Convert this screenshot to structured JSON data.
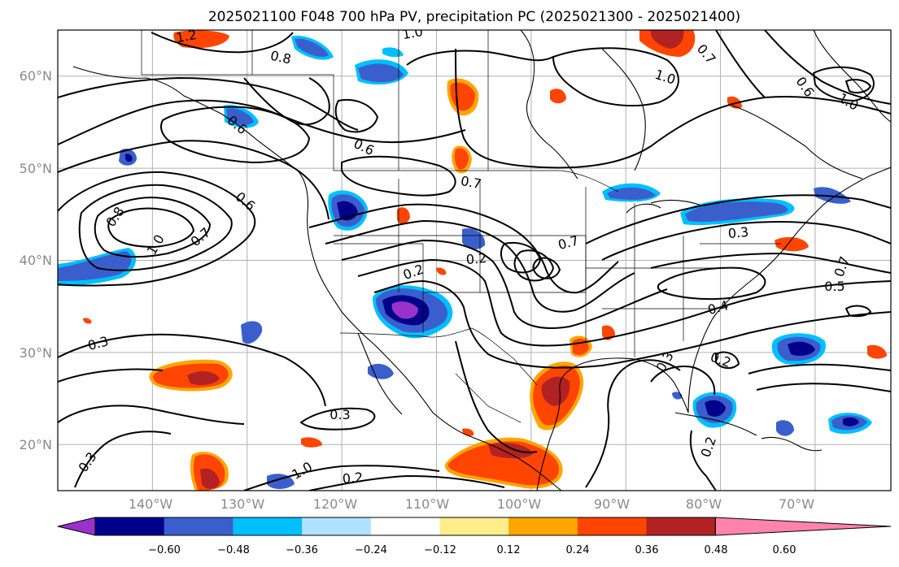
{
  "title": "2025021100 F048 700 hPa PV, precipitation PC (2025021300 - 2025021400)",
  "lat_labels": [
    "60°N",
    "50°N",
    "40°N",
    "30°N",
    "20°N"
  ],
  "lon_labels": [
    "140°W",
    "130°W",
    "120°W",
    "110°W",
    "100°W",
    "90°W",
    "80°W",
    "70°W"
  ],
  "map_extent": {
    "lon": [
      -150,
      -62
    ],
    "lat": [
      15,
      65
    ]
  },
  "grid_lons": [
    -140,
    -130,
    -120,
    -110,
    -100,
    -90,
    -80,
    -70
  ],
  "grid_lats": [
    60,
    50,
    40,
    30,
    20
  ],
  "colorbar": {
    "colors": [
      "#9932cc",
      "#00008b",
      "#3a5fcd",
      "#00bfff",
      "#b0e2ff",
      "#ffffff",
      "#ffec8b",
      "#ffa500",
      "#ff4500",
      "#b22222",
      "#ff83ab"
    ],
    "tick_labels": [
      "−0.60",
      "−0.48",
      "−0.36",
      "−0.24",
      "−0.12",
      "0.12",
      "0.24",
      "0.36",
      "0.48",
      "0.60"
    ]
  },
  "pv_contour_labels": [
    "1.2",
    "1.0",
    "0.8",
    "1.0",
    "0.7",
    "1.0",
    "0.6",
    "0.6",
    "0.6",
    "0.8",
    "1.0",
    "0.7",
    "0.7",
    "0.2",
    "0.2",
    "0.7",
    "0.3",
    "0.7",
    "0.5",
    "0.4",
    "0.3",
    "0.2",
    "0.3",
    "0.3",
    "0.3",
    "0.2",
    "0.2",
    "0.6",
    "1.0"
  ]
}
